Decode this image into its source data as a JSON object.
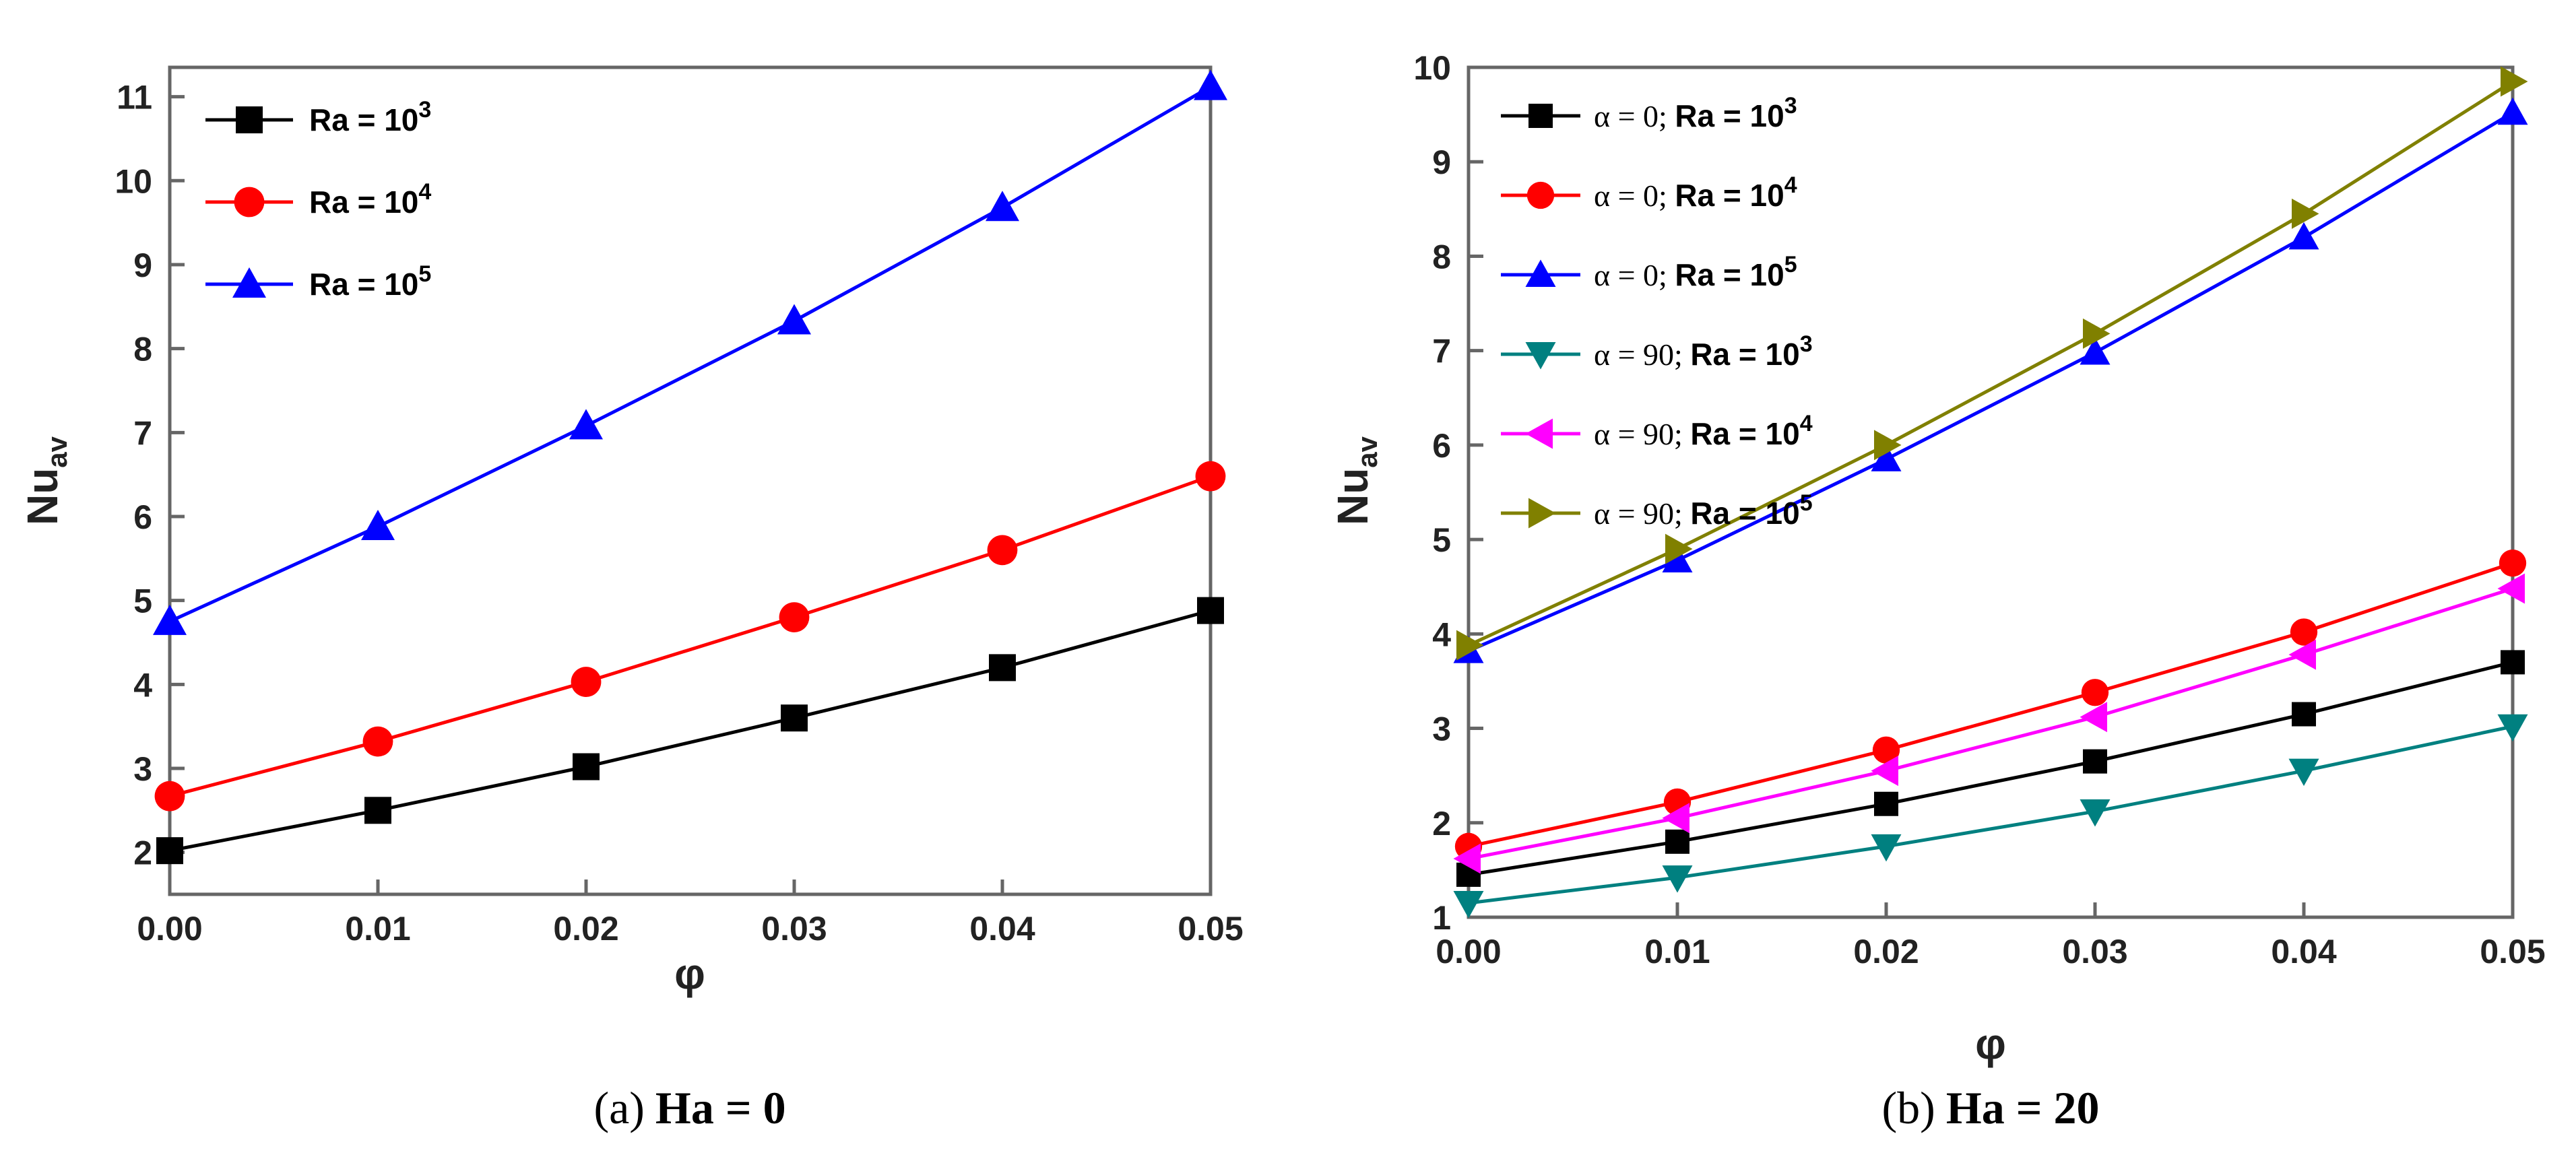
{
  "chart_data": [
    {
      "type": "line",
      "caption_id": "(a)",
      "caption_text": "Ha = 0",
      "xlabel": "φ",
      "ylabel": "Nu",
      "ylabel_sub": "av",
      "xlim": [
        0,
        0.05
      ],
      "ylim": [
        1.5,
        11.35
      ],
      "x": [
        0.0,
        0.01,
        0.02,
        0.03,
        0.04,
        0.05
      ],
      "x_ticks": [
        "0.00",
        "0.01",
        "0.02",
        "0.03",
        "0.04",
        "0.05"
      ],
      "y_ticks": [
        2,
        3,
        4,
        5,
        6,
        7,
        8,
        9,
        10,
        11
      ],
      "legend_position": "top-left",
      "series": [
        {
          "name": "Ra = 10",
          "exp": "3",
          "color": "#000000",
          "marker": "square",
          "values": [
            2.02,
            2.5,
            3.02,
            3.6,
            4.2,
            4.88
          ]
        },
        {
          "name": "Ra = 10",
          "exp": "4",
          "color": "#ff0000",
          "marker": "circle",
          "values": [
            2.67,
            3.32,
            4.03,
            4.8,
            5.6,
            6.48
          ]
        },
        {
          "name": "Ra = 10",
          "exp": "5",
          "color": "#0000ff",
          "marker": "triangle-up",
          "values": [
            4.75,
            5.88,
            7.08,
            8.33,
            9.68,
            11.12
          ]
        }
      ]
    },
    {
      "type": "line",
      "caption_id": "(b)",
      "caption_text": "Ha = 20",
      "xlabel": "φ",
      "ylabel": "Nu",
      "ylabel_sub": "av",
      "xlim": [
        0,
        0.05
      ],
      "ylim": [
        1,
        10
      ],
      "x": [
        0.0,
        0.01,
        0.02,
        0.03,
        0.04,
        0.05
      ],
      "x_ticks": [
        "0.00",
        "0.01",
        "0.02",
        "0.03",
        "0.04",
        "0.05"
      ],
      "y_ticks": [
        1,
        2,
        3,
        4,
        5,
        6,
        7,
        8,
        9,
        10
      ],
      "legend_position": "top-left",
      "series": [
        {
          "alpha": "α = 0;",
          "name": "Ra = 10",
          "exp": "3",
          "color": "#000000",
          "marker": "square",
          "values": [
            1.45,
            1.8,
            2.2,
            2.65,
            3.15,
            3.7
          ]
        },
        {
          "alpha": "α = 0;",
          "name": "Ra = 10",
          "exp": "4",
          "color": "#ff0000",
          "marker": "circle",
          "values": [
            1.75,
            2.22,
            2.77,
            3.38,
            4.02,
            4.75
          ]
        },
        {
          "alpha": "α = 0;",
          "name": "Ra = 10",
          "exp": "5",
          "color": "#0000ff",
          "marker": "triangle-up",
          "values": [
            3.82,
            4.78,
            5.85,
            6.98,
            8.2,
            9.52
          ]
        },
        {
          "alpha": "α = 90;",
          "name": "Ra = 10",
          "exp": "3",
          "color": "#008080",
          "marker": "triangle-down",
          "values": [
            1.15,
            1.42,
            1.75,
            2.12,
            2.55,
            3.02
          ]
        },
        {
          "alpha": "α = 90;",
          "name": "Ra = 10",
          "exp": "4",
          "color": "#ff00ff",
          "marker": "triangle-left",
          "values": [
            1.62,
            2.05,
            2.55,
            3.12,
            3.78,
            4.48
          ]
        },
        {
          "alpha": "α = 90;",
          "name": "Ra = 10",
          "exp": "5",
          "color": "#808000",
          "marker": "triangle-right",
          "values": [
            3.88,
            4.9,
            6.0,
            7.18,
            8.45,
            9.85
          ]
        }
      ]
    }
  ]
}
